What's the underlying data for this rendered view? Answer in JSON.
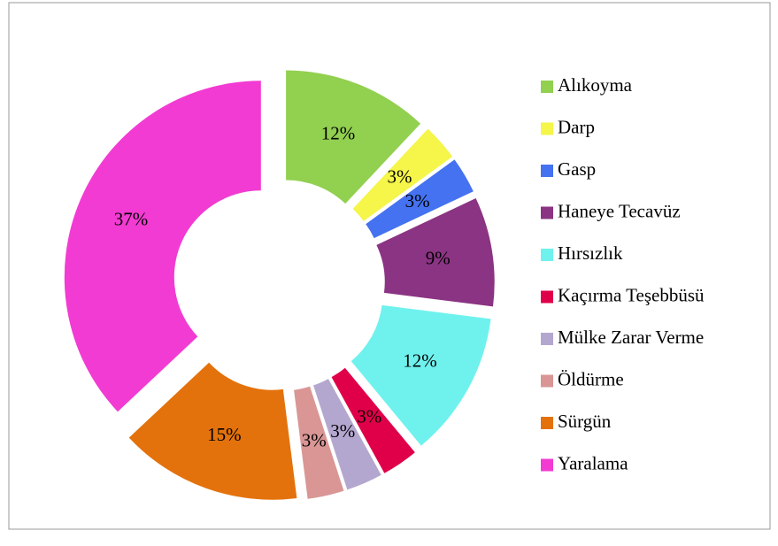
{
  "chart_data": {
    "type": "donut",
    "categories": [
      "Alıkoyma",
      "Darp",
      "Gasp",
      "Haneye Tecavüz",
      "Hırsızlık",
      "Kaçırma Teşebbüsü",
      "Mülke Zarar Verme",
      "Öldürme",
      "Sürgün",
      "Yaralama"
    ],
    "values": [
      12,
      3,
      3,
      9,
      12,
      3,
      3,
      3,
      15,
      37
    ],
    "value_labels": [
      "12%",
      "3%",
      "3%",
      "9%",
      "12%",
      "3%",
      "3%",
      "3%",
      "15%",
      "37%"
    ],
    "colors": [
      "#92d050",
      "#f5f54a",
      "#4472f0",
      "#8b3483",
      "#6ff2ee",
      "#e0004a",
      "#b4a7cf",
      "#d99694",
      "#e4720c",
      "#f23bd2"
    ],
    "legend": "right"
  }
}
